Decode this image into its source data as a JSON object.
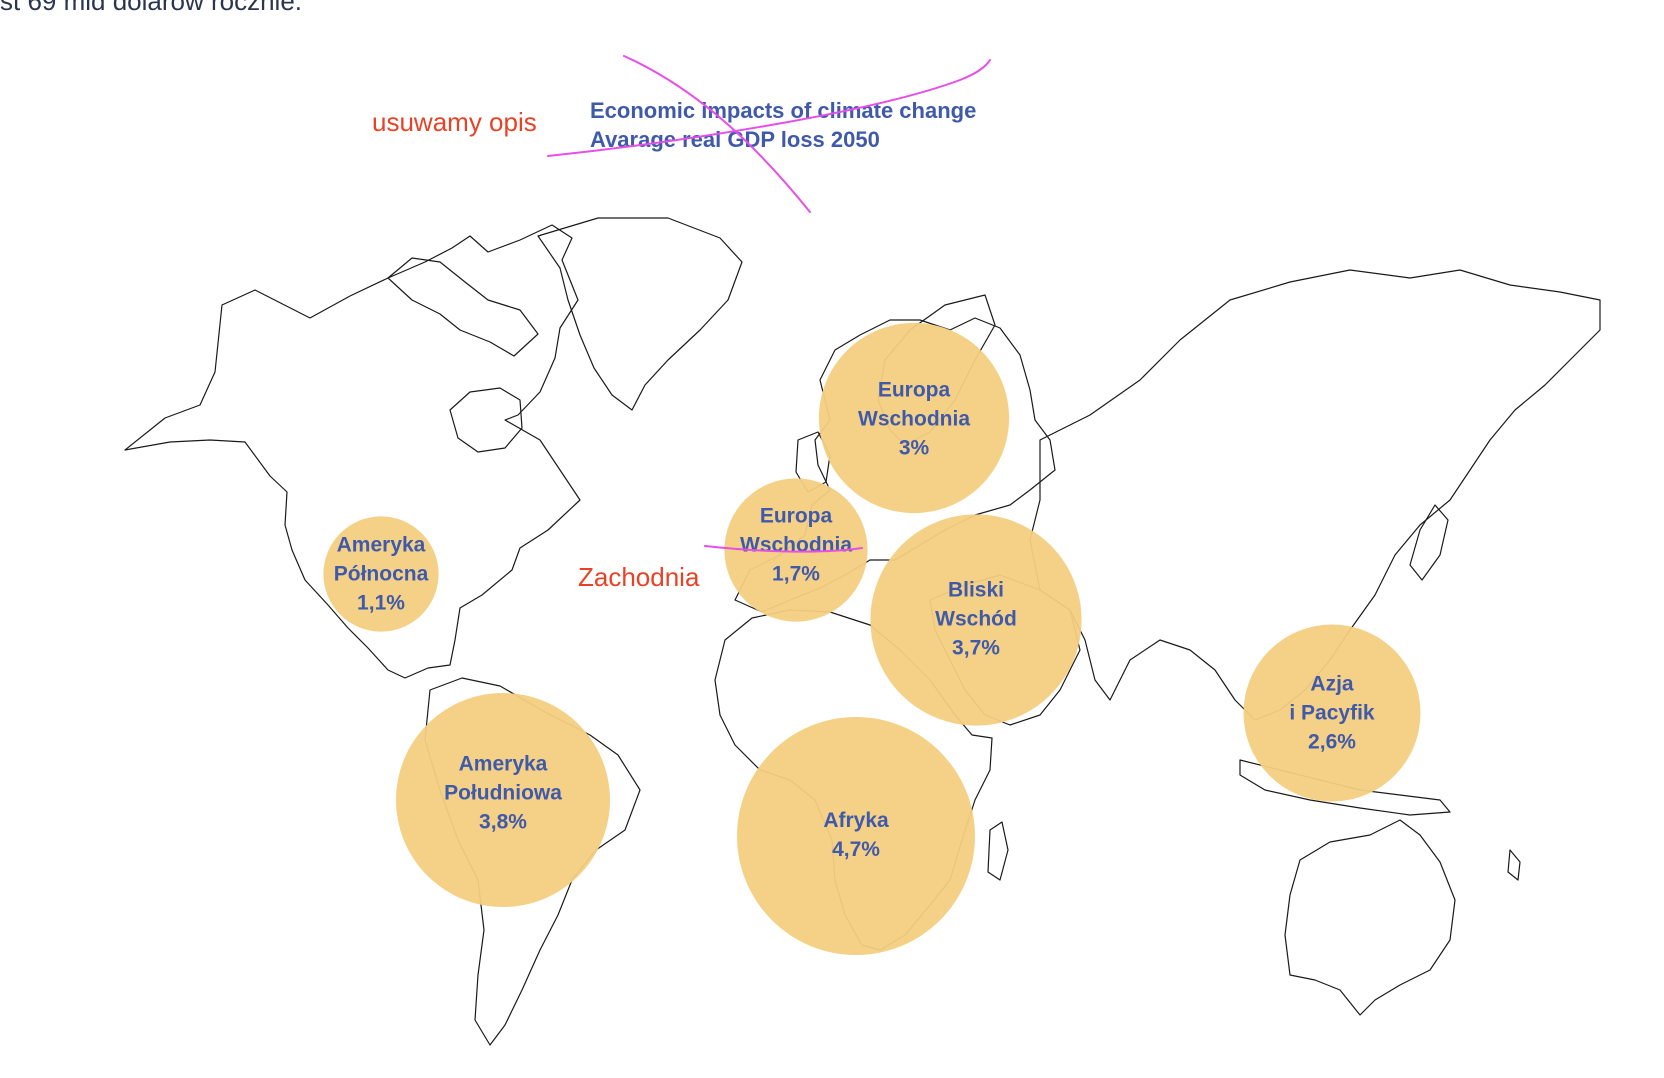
{
  "top_text": "st 69 mld dolarów rocznie.",
  "notes": {
    "remove_description": "usuwamy opis",
    "west_correction": "Zachodnia"
  },
  "map_title": {
    "line1": "Economic impacts of climate change",
    "line2": "Avarage real GDP loss 2050"
  },
  "colors": {
    "bubble": "#f3cf80",
    "label": "#3f5aab",
    "note": "#e84226",
    "annotation_stroke": "#e84ee8"
  },
  "regions": [
    {
      "name_line1": "Ameryka",
      "name_line2": "Północna",
      "value": "1,1%",
      "gdp_loss_pct": 1.1
    },
    {
      "name_line1": "Ameryka",
      "name_line2": "Południowa",
      "value": "3,8%",
      "gdp_loss_pct": 3.8
    },
    {
      "name_line1": "Europa",
      "name_line2": "Wschodnia",
      "value": "1,7%",
      "gdp_loss_pct": 1.7
    },
    {
      "name_line1": "Europa",
      "name_line2": "Wschodnia",
      "value": "3%",
      "gdp_loss_pct": 3.0
    },
    {
      "name_line1": "Bliski",
      "name_line2": "Wschód",
      "value": "3,7%",
      "gdp_loss_pct": 3.7
    },
    {
      "name_line1": "Afryka",
      "name_line2": "",
      "value": "4,7%",
      "gdp_loss_pct": 4.7
    },
    {
      "name_line1": "Azja",
      "name_line2": "i Pacyfik",
      "value": "2,6%",
      "gdp_loss_pct": 2.6
    }
  ]
}
